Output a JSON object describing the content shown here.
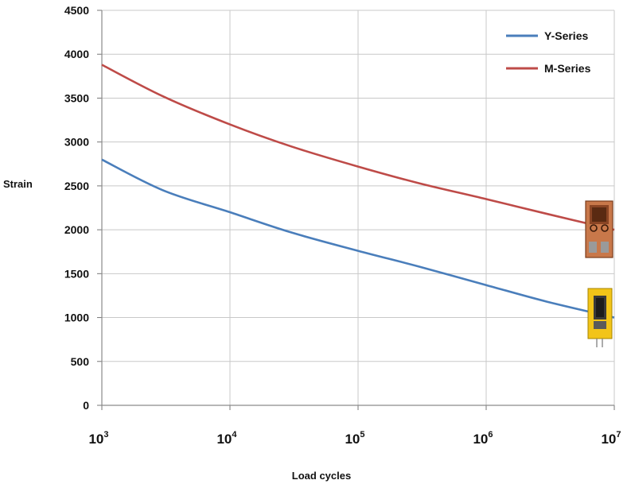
{
  "chart_data": {
    "type": "line",
    "xlabel": "Load cycles",
    "ylabel": "Strain",
    "x_scale": "log",
    "xlim": [
      1000,
      10000000
    ],
    "ylim": [
      0,
      4500
    ],
    "y_ticks": [
      0,
      500,
      1000,
      1500,
      2000,
      2500,
      3000,
      3500,
      4000,
      4500
    ],
    "x_ticks": [
      {
        "value": 1000,
        "base": "10",
        "exp": "3"
      },
      {
        "value": 10000,
        "base": "10",
        "exp": "4"
      },
      {
        "value": 100000,
        "base": "10",
        "exp": "5"
      },
      {
        "value": 1000000,
        "base": "10",
        "exp": "6"
      },
      {
        "value": 10000000,
        "base": "10",
        "exp": "7"
      }
    ],
    "grid": true,
    "legend_position": "top-right",
    "series": [
      {
        "name": "Y-Series",
        "color": "#4a7ebb",
        "x": [
          1000,
          3000,
          10000,
          30000,
          100000,
          300000,
          1000000,
          3000000,
          10000000
        ],
        "y": [
          2800,
          2450,
          2200,
          1970,
          1760,
          1580,
          1370,
          1180,
          1000
        ]
      },
      {
        "name": "M-Series",
        "color": "#be4b48",
        "x": [
          1000,
          3000,
          10000,
          30000,
          100000,
          300000,
          1000000,
          3000000,
          10000000
        ],
        "y": [
          3880,
          3520,
          3200,
          2950,
          2720,
          2530,
          2350,
          2180,
          2000
        ]
      }
    ]
  },
  "gauge_images": [
    {
      "name": "m-series-strain-gauge",
      "color": "#c8784a"
    },
    {
      "name": "y-series-strain-gauge",
      "color": "#f2c418"
    }
  ]
}
